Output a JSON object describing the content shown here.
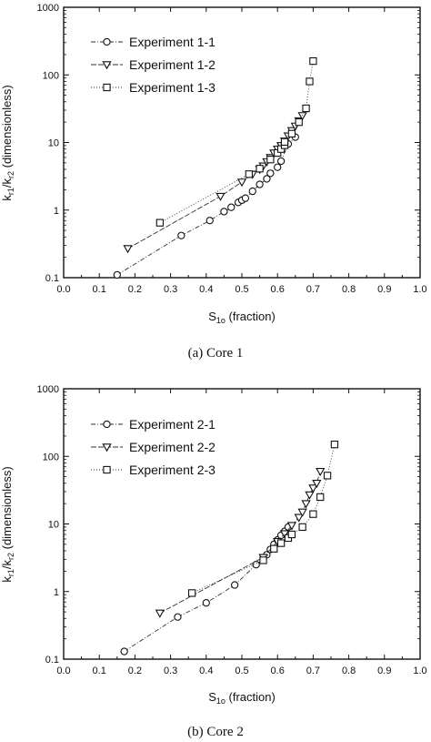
{
  "chart_data": [
    {
      "type": "scatter",
      "caption": "(a) Core 1",
      "xlabel": {
        "main": "S",
        "sub": "1o",
        "rest": " (fraction)"
      },
      "ylabel": {
        "p1": "k",
        "s1": "r1",
        "p2": "/k",
        "s2": "r2",
        "p3": " (dimensionless)"
      },
      "xlim": [
        0.0,
        1.0
      ],
      "ylim": [
        0.1,
        1000
      ],
      "yscale": "log",
      "xticks": [
        "0.0",
        "0.1",
        "0.2",
        "0.3",
        "0.4",
        "0.5",
        "0.6",
        "0.7",
        "0.8",
        "0.9",
        "1.0"
      ],
      "yticks": [
        "0.1",
        "1",
        "10",
        "100",
        "1000"
      ],
      "legend_position": "top-left",
      "series": [
        {
          "name": "Experiment 1-1",
          "marker": "circle",
          "x": [
            0.15,
            0.33,
            0.41,
            0.45,
            0.47,
            0.49,
            0.5,
            0.51,
            0.53,
            0.55,
            0.57,
            0.58,
            0.6,
            0.61,
            0.63,
            0.65
          ],
          "y": [
            0.11,
            0.42,
            0.7,
            0.95,
            1.1,
            1.3,
            1.4,
            1.5,
            1.9,
            2.4,
            2.9,
            3.5,
            4.3,
            5.3,
            9.5,
            12.0
          ]
        },
        {
          "name": "Experiment 1-2",
          "marker": "triangle-down",
          "x": [
            0.18,
            0.44,
            0.5,
            0.53,
            0.55,
            0.56,
            0.57,
            0.58,
            0.59,
            0.6,
            0.61,
            0.62,
            0.63,
            0.64,
            0.65,
            0.66,
            0.67
          ],
          "y": [
            0.27,
            1.6,
            2.6,
            3.4,
            4.0,
            4.5,
            5.2,
            6.0,
            7.0,
            8.0,
            9.0,
            10.5,
            12.5,
            15.0,
            17.5,
            21.0,
            25.0
          ]
        },
        {
          "name": "Experiment 1-3",
          "marker": "square",
          "x": [
            0.27,
            0.52,
            0.55,
            0.58,
            0.6,
            0.61,
            0.62,
            0.62,
            0.64,
            0.66,
            0.68,
            0.69,
            0.7
          ],
          "y": [
            0.65,
            3.4,
            4.1,
            5.6,
            7.0,
            8.0,
            9.1,
            10.2,
            13.5,
            20.0,
            32.0,
            80.0,
            160.0
          ]
        }
      ]
    },
    {
      "type": "scatter",
      "caption": "(b) Core 2",
      "xlabel": {
        "main": "S",
        "sub": "1o",
        "rest": " (fraction)"
      },
      "ylabel": {
        "p1": "k",
        "s1": "r1",
        "p2": "/k",
        "s2": "r2",
        "p3": " (dimensionless)"
      },
      "xlim": [
        0.0,
        1.0
      ],
      "ylim": [
        0.1,
        1000
      ],
      "yscale": "log",
      "xticks": [
        "0.0",
        "0.1",
        "0.2",
        "0.3",
        "0.4",
        "0.5",
        "0.6",
        "0.7",
        "0.8",
        "0.9",
        "1.0"
      ],
      "yticks": [
        "0.1",
        "1",
        "10",
        "100",
        "1000"
      ],
      "legend_position": "top-left",
      "series": [
        {
          "name": "Experiment 2-1",
          "marker": "circle",
          "x": [
            0.17,
            0.32,
            0.4,
            0.48,
            0.54,
            0.57,
            0.58,
            0.59,
            0.6,
            0.61,
            0.62,
            0.63
          ],
          "y": [
            0.13,
            0.42,
            0.68,
            1.25,
            2.5,
            3.5,
            4.2,
            5.0,
            5.8,
            6.8,
            7.8,
            9.0
          ]
        },
        {
          "name": "Experiment 2-2",
          "marker": "triangle-down",
          "x": [
            0.27,
            0.56,
            0.6,
            0.62,
            0.64,
            0.66,
            0.67,
            0.68,
            0.69,
            0.7,
            0.71,
            0.72
          ],
          "y": [
            0.48,
            3.2,
            5.5,
            7.2,
            9.5,
            12.5,
            15.0,
            20.0,
            27.0,
            34.0,
            40.0,
            60.0
          ]
        },
        {
          "name": "Experiment 2-3",
          "marker": "square",
          "x": [
            0.36,
            0.56,
            0.59,
            0.61,
            0.63,
            0.64,
            0.67,
            0.7,
            0.72,
            0.74,
            0.76
          ],
          "y": [
            0.95,
            2.9,
            4.3,
            5.2,
            6.2,
            7.0,
            9.0,
            14.0,
            25.0,
            52.0,
            150.0
          ]
        }
      ]
    }
  ]
}
